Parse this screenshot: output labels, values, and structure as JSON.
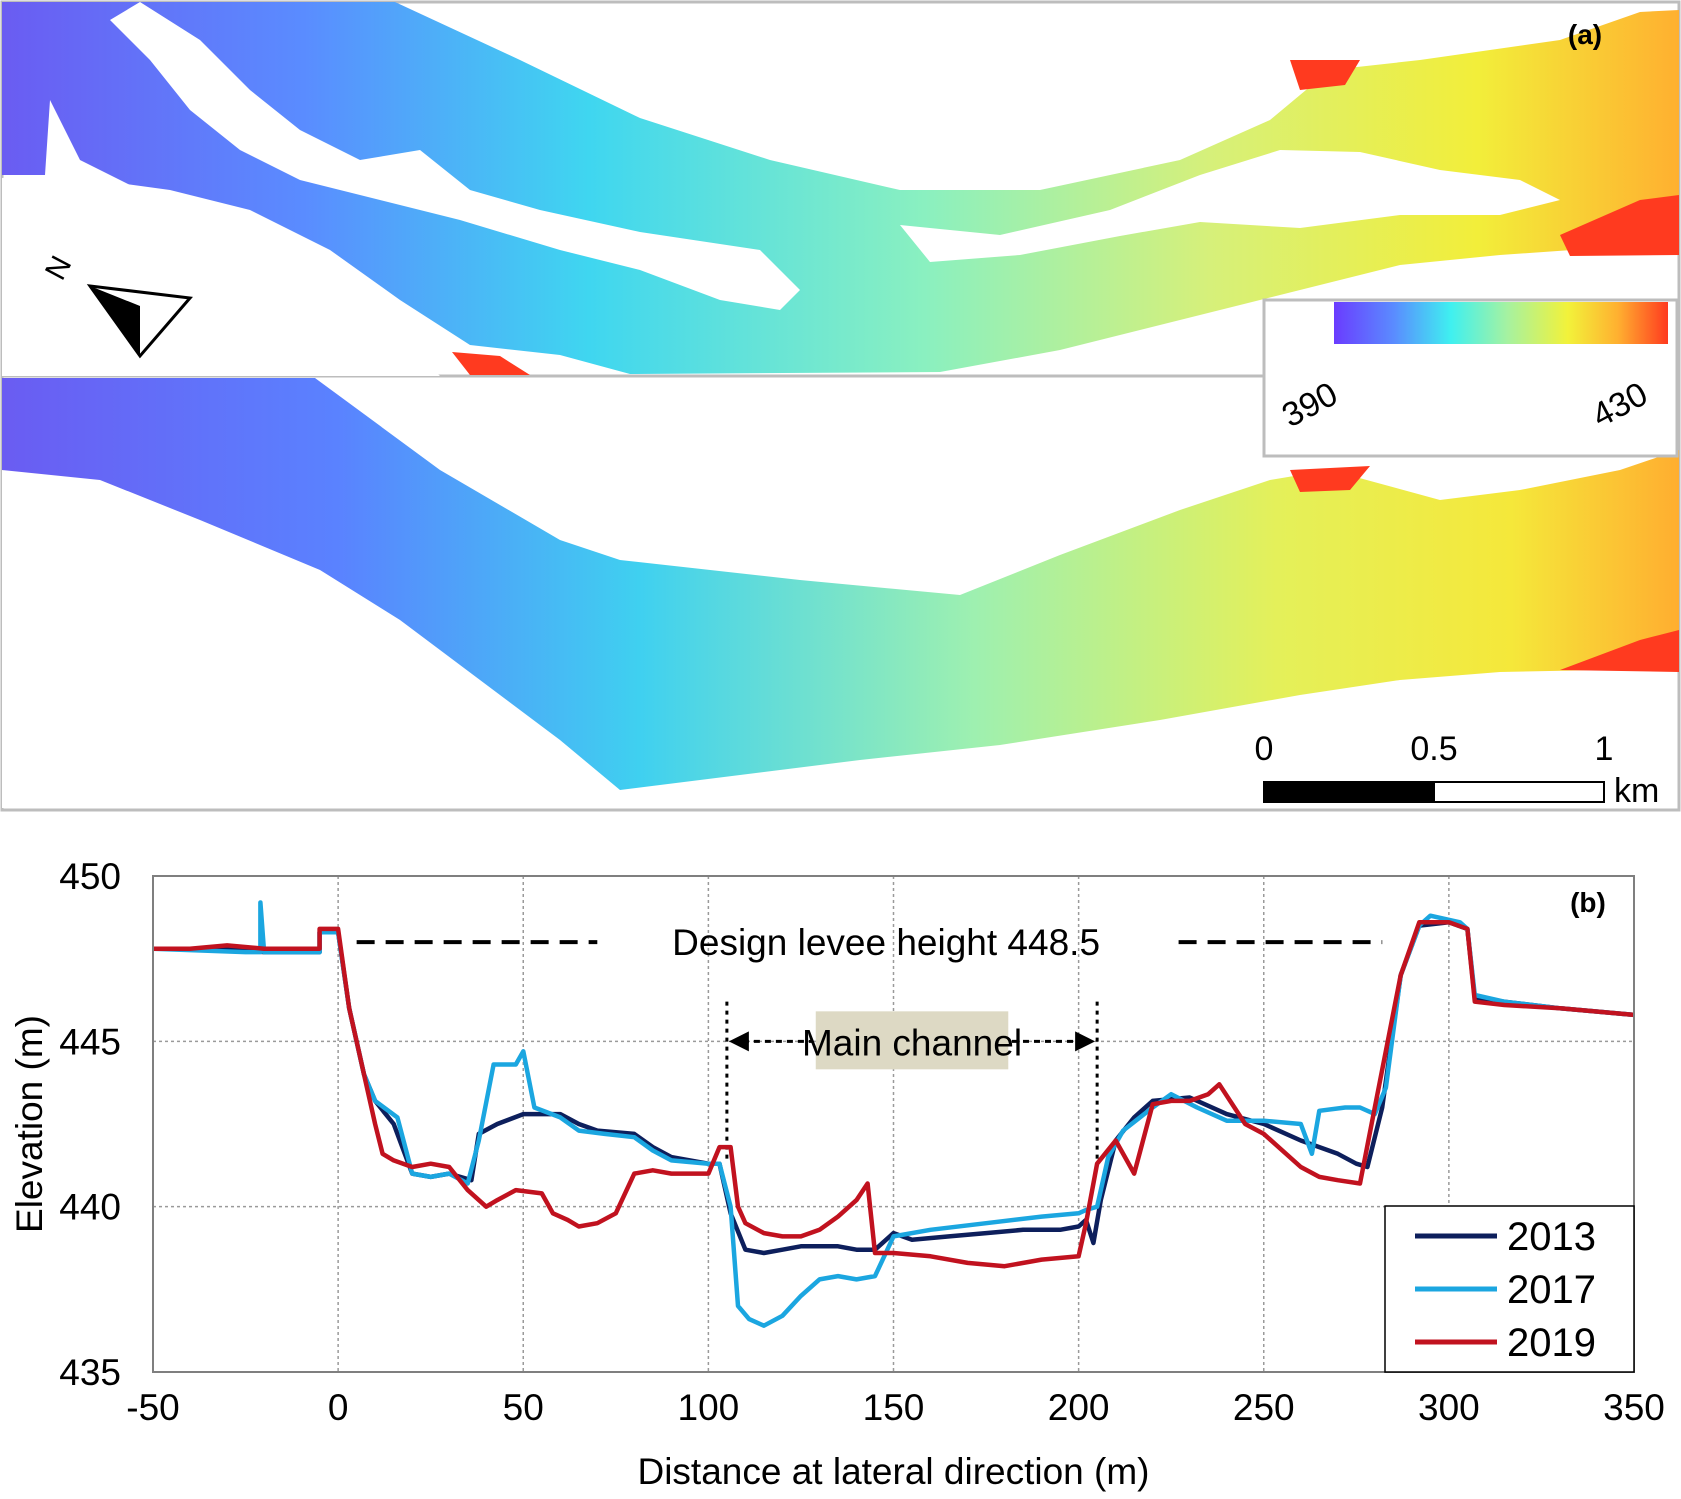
{
  "panel_a": {
    "label": "(a)",
    "colorbar": {
      "min_label": "390",
      "max_label": "430",
      "colors": [
        "#6a3cff",
        "#5a8cff",
        "#3ff0f0",
        "#a6f2a0",
        "#f2f23a",
        "#ffb030",
        "#ff3a1f"
      ]
    },
    "scale_bar": {
      "ticks": [
        "0",
        "0.5",
        "1"
      ],
      "unit": "km"
    },
    "north_label": "N"
  },
  "chart_data": {
    "type": "line",
    "label": "(b)",
    "xlabel": "Distance at lateral direction (m)",
    "ylabel": "Elevation (m)",
    "xlim": [
      -50,
      350
    ],
    "ylim": [
      435,
      450
    ],
    "xticks": [
      -50,
      0,
      50,
      100,
      150,
      200,
      250,
      300,
      350
    ],
    "yticks": [
      435,
      440,
      445,
      450
    ],
    "grid": true,
    "legend_position": "bottom-right",
    "annotations": {
      "levee": {
        "text": "Design levee height 448.5",
        "y": 448
      },
      "channel": {
        "text": "Main channel",
        "x_start": 105,
        "x_end": 205
      }
    },
    "series": [
      {
        "name": "2013",
        "color": "#0d1f5c",
        "points": [
          [
            -50,
            447.8
          ],
          [
            -30,
            447.8
          ],
          [
            -20,
            447.7
          ],
          [
            -10,
            447.7
          ],
          [
            -5,
            447.7
          ],
          [
            -5,
            448.3
          ],
          [
            0,
            448.3
          ],
          [
            3,
            446
          ],
          [
            7,
            444
          ],
          [
            10,
            443.2
          ],
          [
            15,
            442.5
          ],
          [
            20,
            441
          ],
          [
            25,
            440.9
          ],
          [
            30,
            441
          ],
          [
            36,
            440.8
          ],
          [
            38,
            442.2
          ],
          [
            43,
            442.5
          ],
          [
            50,
            442.8
          ],
          [
            60,
            442.8
          ],
          [
            65,
            442.5
          ],
          [
            70,
            442.3
          ],
          [
            80,
            442.2
          ],
          [
            85,
            441.8
          ],
          [
            90,
            441.5
          ],
          [
            100,
            441.3
          ],
          [
            103,
            441.3
          ],
          [
            106,
            439.8
          ],
          [
            110,
            438.7
          ],
          [
            115,
            438.6
          ],
          [
            120,
            438.7
          ],
          [
            125,
            438.8
          ],
          [
            135,
            438.8
          ],
          [
            140,
            438.7
          ],
          [
            145,
            438.7
          ],
          [
            150,
            439.2
          ],
          [
            155,
            439
          ],
          [
            165,
            439.1
          ],
          [
            175,
            439.2
          ],
          [
            185,
            439.3
          ],
          [
            195,
            439.3
          ],
          [
            200,
            439.4
          ],
          [
            202,
            439.6
          ],
          [
            204,
            438.9
          ],
          [
            206,
            440.2
          ],
          [
            210,
            442
          ],
          [
            215,
            442.7
          ],
          [
            220,
            443.2
          ],
          [
            230,
            443.3
          ],
          [
            240,
            442.8
          ],
          [
            250,
            442.5
          ],
          [
            260,
            442
          ],
          [
            265,
            441.8
          ],
          [
            270,
            441.6
          ],
          [
            275,
            441.3
          ],
          [
            278,
            441.2
          ],
          [
            282,
            443
          ],
          [
            287,
            447
          ],
          [
            292,
            448.5
          ],
          [
            300,
            448.6
          ],
          [
            305,
            448.4
          ],
          [
            307,
            446.3
          ],
          [
            315,
            446.2
          ],
          [
            330,
            446
          ],
          [
            350,
            445.8
          ]
        ]
      },
      {
        "name": "2017",
        "color": "#1ba6e0",
        "points": [
          [
            -50,
            447.8
          ],
          [
            -25,
            447.7
          ],
          [
            -21,
            447.7
          ],
          [
            -21,
            449.2
          ],
          [
            -20,
            447.7
          ],
          [
            -10,
            447.7
          ],
          [
            -5,
            447.7
          ],
          [
            -5,
            448.3
          ],
          [
            0,
            448.3
          ],
          [
            3,
            446
          ],
          [
            7,
            444
          ],
          [
            10,
            443.2
          ],
          [
            16,
            442.7
          ],
          [
            20,
            441
          ],
          [
            25,
            440.9
          ],
          [
            30,
            441
          ],
          [
            35,
            440.7
          ],
          [
            38,
            442
          ],
          [
            42,
            444.3
          ],
          [
            48,
            444.3
          ],
          [
            50,
            444.7
          ],
          [
            53,
            443
          ],
          [
            60,
            442.7
          ],
          [
            65,
            442.3
          ],
          [
            72,
            442.2
          ],
          [
            80,
            442.1
          ],
          [
            85,
            441.7
          ],
          [
            90,
            441.4
          ],
          [
            100,
            441.3
          ],
          [
            103,
            441.3
          ],
          [
            106,
            440
          ],
          [
            108,
            437
          ],
          [
            111,
            436.6
          ],
          [
            115,
            436.4
          ],
          [
            120,
            436.7
          ],
          [
            125,
            437.3
          ],
          [
            130,
            437.8
          ],
          [
            135,
            437.9
          ],
          [
            140,
            437.8
          ],
          [
            145,
            437.9
          ],
          [
            150,
            439.1
          ],
          [
            160,
            439.3
          ],
          [
            175,
            439.5
          ],
          [
            190,
            439.7
          ],
          [
            200,
            439.8
          ],
          [
            202,
            439.9
          ],
          [
            205,
            440
          ],
          [
            208,
            441.5
          ],
          [
            212,
            442.3
          ],
          [
            220,
            443
          ],
          [
            225,
            443.4
          ],
          [
            232,
            443
          ],
          [
            240,
            442.6
          ],
          [
            250,
            442.6
          ],
          [
            260,
            442.5
          ],
          [
            263,
            441.6
          ],
          [
            265,
            442.9
          ],
          [
            272,
            443
          ],
          [
            276,
            443
          ],
          [
            280,
            442.8
          ],
          [
            283,
            443.6
          ],
          [
            287,
            447
          ],
          [
            292,
            448.5
          ],
          [
            295,
            448.8
          ],
          [
            303,
            448.6
          ],
          [
            305,
            448.4
          ],
          [
            307,
            446.4
          ],
          [
            315,
            446.2
          ],
          [
            330,
            446
          ],
          [
            350,
            445.8
          ]
        ]
      },
      {
        "name": "2019",
        "color": "#c1121f",
        "points": [
          [
            -50,
            447.8
          ],
          [
            -40,
            447.8
          ],
          [
            -30,
            447.9
          ],
          [
            -20,
            447.8
          ],
          [
            -10,
            447.8
          ],
          [
            -5,
            447.8
          ],
          [
            -5,
            448.4
          ],
          [
            0,
            448.4
          ],
          [
            3,
            446
          ],
          [
            7,
            444
          ],
          [
            10,
            442.5
          ],
          [
            12,
            441.6
          ],
          [
            15,
            441.4
          ],
          [
            20,
            441.2
          ],
          [
            25,
            441.3
          ],
          [
            30,
            441.2
          ],
          [
            35,
            440.5
          ],
          [
            40,
            440
          ],
          [
            43,
            440.2
          ],
          [
            48,
            440.5
          ],
          [
            55,
            440.4
          ],
          [
            58,
            439.8
          ],
          [
            62,
            439.6
          ],
          [
            65,
            439.4
          ],
          [
            70,
            439.5
          ],
          [
            75,
            439.8
          ],
          [
            80,
            441
          ],
          [
            85,
            441.1
          ],
          [
            90,
            441
          ],
          [
            95,
            441
          ],
          [
            100,
            441
          ],
          [
            103,
            441.8
          ],
          [
            106,
            441.8
          ],
          [
            108,
            440
          ],
          [
            110,
            439.5
          ],
          [
            115,
            439.2
          ],
          [
            120,
            439.1
          ],
          [
            125,
            439.1
          ],
          [
            130,
            439.3
          ],
          [
            135,
            439.7
          ],
          [
            140,
            440.2
          ],
          [
            143,
            440.7
          ],
          [
            145,
            438.6
          ],
          [
            150,
            438.6
          ],
          [
            160,
            438.5
          ],
          [
            170,
            438.3
          ],
          [
            180,
            438.2
          ],
          [
            190,
            438.4
          ],
          [
            200,
            438.5
          ],
          [
            202,
            439.5
          ],
          [
            205,
            441.3
          ],
          [
            210,
            442
          ],
          [
            215,
            441
          ],
          [
            220,
            443.1
          ],
          [
            225,
            443.2
          ],
          [
            230,
            443.2
          ],
          [
            235,
            443.4
          ],
          [
            238,
            443.7
          ],
          [
            245,
            442.5
          ],
          [
            250,
            442.2
          ],
          [
            260,
            441.2
          ],
          [
            265,
            440.9
          ],
          [
            270,
            440.8
          ],
          [
            276,
            440.7
          ],
          [
            280,
            443
          ],
          [
            287,
            447
          ],
          [
            292,
            448.6
          ],
          [
            300,
            448.6
          ],
          [
            305,
            448.4
          ],
          [
            307,
            446.2
          ],
          [
            315,
            446.1
          ],
          [
            330,
            446
          ],
          [
            350,
            445.8
          ]
        ]
      }
    ]
  }
}
